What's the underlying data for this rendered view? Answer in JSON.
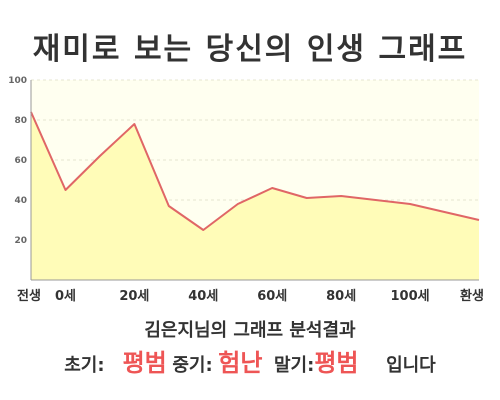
{
  "title": "재미로 보는 당신의 인생 그래프",
  "subtitle": "김은지님의 그래프 분석결과",
  "result": {
    "early_label": "초기:",
    "early_value": "평범",
    "middle_label": "중기:",
    "middle_value": "험난",
    "late_label": "말기:",
    "late_value": "평범",
    "ending": "입니다"
  },
  "colors": {
    "line": "#e06666",
    "fill": "#fffcb8",
    "plot_background": "#fffff0",
    "highlight_text": "#ee5555"
  },
  "chart_data": {
    "type": "area",
    "title": "재미로 보는 당신의 인생 그래프",
    "xlabel": "",
    "ylabel": "",
    "x": [
      -10,
      0,
      10,
      20,
      30,
      40,
      50,
      60,
      70,
      80,
      90,
      100,
      110,
      120
    ],
    "x_tick_labels": [
      {
        "x": -10,
        "label": "전생"
      },
      {
        "x": 0,
        "label": "0세"
      },
      {
        "x": 20,
        "label": "20세"
      },
      {
        "x": 40,
        "label": "40세"
      },
      {
        "x": 60,
        "label": "60세"
      },
      {
        "x": 80,
        "label": "80세"
      },
      {
        "x": 100,
        "label": "100세"
      },
      {
        "x": 120,
        "label": "환생"
      }
    ],
    "series": [
      {
        "values": [
          84,
          45,
          62,
          78,
          37,
          25,
          38,
          46,
          41,
          42,
          40,
          38,
          34,
          30
        ]
      }
    ],
    "ylim": [
      0,
      100
    ],
    "y_ticks": [
      20,
      40,
      60,
      80,
      100
    ],
    "xlim": [
      -10,
      120
    ],
    "grid": true,
    "legend": "none"
  }
}
